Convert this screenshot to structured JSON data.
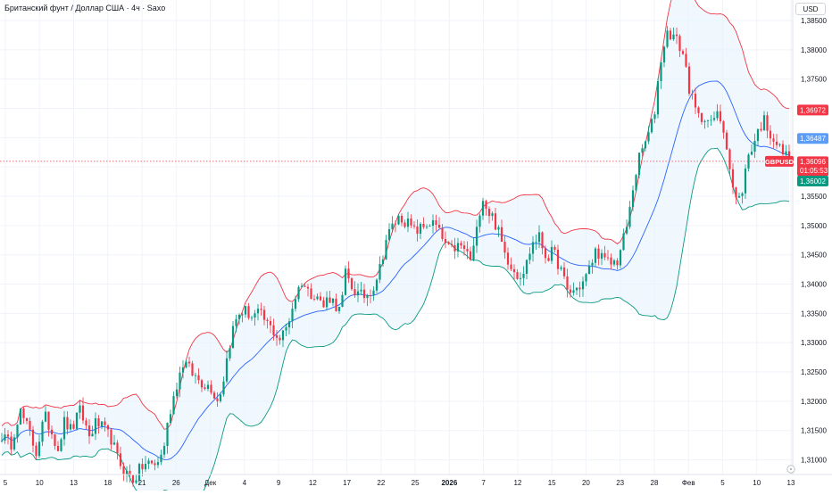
{
  "header": {
    "title": "Британский фунт / Доллар США · 4ч · Saxo",
    "currency_button": "USD"
  },
  "colors": {
    "up": "#089981",
    "down": "#f23645",
    "middle_band": "#2962ff",
    "upper_band": "#f23645",
    "lower_band": "#089981",
    "band_fill": "#e3f2fd"
  },
  "chart_data": {
    "type": "candlestick",
    "symbol": "GBPUSD",
    "indicator": "Bollinger Bands",
    "y_range": [
      1.3075,
      1.3885
    ],
    "y_ticks": [
      {
        "value": 1.385,
        "label": "1,38500"
      },
      {
        "value": 1.38,
        "label": "1,38000"
      },
      {
        "value": 1.375,
        "label": "1,37500"
      },
      {
        "value": 1.37,
        "label": "1,37000"
      },
      {
        "value": 1.365,
        "label": "1,36500"
      },
      {
        "value": 1.36,
        "label": "1,36000"
      },
      {
        "value": 1.355,
        "label": "1,35500"
      },
      {
        "value": 1.35,
        "label": "1,35000"
      },
      {
        "value": 1.345,
        "label": "1,34500"
      },
      {
        "value": 1.34,
        "label": "1,34000"
      },
      {
        "value": 1.335,
        "label": "1,33500"
      },
      {
        "value": 1.33,
        "label": "1,33000"
      },
      {
        "value": 1.325,
        "label": "1,32500"
      },
      {
        "value": 1.32,
        "label": "1,32000"
      },
      {
        "value": 1.315,
        "label": "1,31500"
      },
      {
        "value": 1.31,
        "label": "1,31000"
      }
    ],
    "x_ticks": [
      "5",
      "10",
      "13",
      "18",
      "21",
      "26",
      "Дек",
      "4",
      "9",
      "12",
      "17",
      "22",
      "25",
      "2026",
      "7",
      "12",
      "15",
      "20",
      "23",
      "28",
      "Фев",
      "5",
      "10",
      "13"
    ],
    "price_labels": {
      "upper_band": {
        "value": 1.36972,
        "label": "1,36972"
      },
      "middle_band": {
        "value": 1.36487,
        "label": "1,36487"
      },
      "last_price": {
        "value": 1.36096,
        "label": "1,36096",
        "symbol": "GBPUSD",
        "countdown": "01:05:53"
      },
      "lower_band": {
        "value": 1.36002,
        "label": "1,36002"
      }
    },
    "close_path": [
      [
        0,
        1.3145
      ],
      [
        12,
        1.3125
      ],
      [
        22,
        1.3185
      ],
      [
        35,
        1.314
      ],
      [
        40,
        1.311
      ],
      [
        50,
        1.3175
      ],
      [
        60,
        1.314
      ],
      [
        65,
        1.312
      ],
      [
        72,
        1.3165
      ],
      [
        80,
        1.315
      ],
      [
        90,
        1.3185
      ],
      [
        100,
        1.314
      ],
      [
        108,
        1.3165
      ],
      [
        117,
        1.315
      ],
      [
        125,
        1.3135
      ],
      [
        132,
        1.31
      ],
      [
        140,
        1.308
      ],
      [
        150,
        1.3065
      ],
      [
        157,
        1.3085
      ],
      [
        165,
        1.3095
      ],
      [
        173,
        1.309
      ],
      [
        182,
        1.311
      ],
      [
        190,
        1.318
      ],
      [
        198,
        1.323
      ],
      [
        206,
        1.327
      ],
      [
        214,
        1.325
      ],
      [
        220,
        1.324
      ],
      [
        228,
        1.323
      ],
      [
        236,
        1.3225
      ],
      [
        244,
        1.32
      ],
      [
        250,
        1.3235
      ],
      [
        256,
        1.329
      ],
      [
        262,
        1.333
      ],
      [
        268,
        1.335
      ],
      [
        274,
        1.3355
      ],
      [
        282,
        1.3345
      ],
      [
        290,
        1.335
      ],
      [
        298,
        1.3335
      ],
      [
        306,
        1.332
      ],
      [
        314,
        1.3305
      ],
      [
        322,
        1.333
      ],
      [
        330,
        1.3375
      ],
      [
        338,
        1.3405
      ],
      [
        346,
        1.3385
      ],
      [
        354,
        1.3385
      ],
      [
        362,
        1.336
      ],
      [
        368,
        1.338
      ],
      [
        376,
        1.3365
      ],
      [
        382,
        1.335
      ],
      [
        386,
        1.342
      ],
      [
        394,
        1.3395
      ],
      [
        402,
        1.338
      ],
      [
        410,
        1.338
      ],
      [
        418,
        1.3395
      ],
      [
        426,
        1.343
      ],
      [
        432,
        1.3475
      ],
      [
        440,
        1.35
      ],
      [
        448,
        1.3515
      ],
      [
        456,
        1.3505
      ],
      [
        464,
        1.349
      ],
      [
        472,
        1.3495
      ],
      [
        480,
        1.3505
      ],
      [
        488,
        1.35
      ],
      [
        496,
        1.3475
      ],
      [
        504,
        1.3455
      ],
      [
        512,
        1.3465
      ],
      [
        520,
        1.346
      ],
      [
        528,
        1.344
      ],
      [
        534,
        1.349
      ],
      [
        540,
        1.3555
      ],
      [
        546,
        1.3525
      ],
      [
        552,
        1.3515
      ],
      [
        558,
        1.349
      ],
      [
        566,
        1.345
      ],
      [
        572,
        1.3435
      ],
      [
        580,
        1.3415
      ],
      [
        588,
        1.3425
      ],
      [
        596,
        1.347
      ],
      [
        604,
        1.348
      ],
      [
        612,
        1.3445
      ],
      [
        620,
        1.3455
      ],
      [
        628,
        1.3425
      ],
      [
        636,
        1.3385
      ],
      [
        644,
        1.339
      ],
      [
        652,
        1.34
      ],
      [
        660,
        1.3425
      ],
      [
        668,
        1.346
      ],
      [
        676,
        1.344
      ],
      [
        684,
        1.3435
      ],
      [
        692,
        1.344
      ],
      [
        698,
        1.3475
      ],
      [
        704,
        1.351
      ],
      [
        710,
        1.3575
      ],
      [
        716,
        1.3615
      ],
      [
        722,
        1.364
      ],
      [
        728,
        1.366
      ],
      [
        734,
        1.37
      ],
      [
        738,
        1.376
      ],
      [
        742,
        1.38
      ],
      [
        748,
        1.383
      ],
      [
        754,
        1.3825
      ],
      [
        760,
        1.381
      ],
      [
        766,
        1.379
      ],
      [
        772,
        1.3735
      ],
      [
        778,
        1.37
      ],
      [
        784,
        1.368
      ],
      [
        790,
        1.369
      ],
      [
        796,
        1.367
      ],
      [
        802,
        1.369
      ],
      [
        808,
        1.368
      ],
      [
        814,
        1.364
      ],
      [
        820,
        1.357
      ],
      [
        826,
        1.3535
      ],
      [
        832,
        1.3565
      ],
      [
        838,
        1.362
      ],
      [
        844,
        1.364
      ],
      [
        850,
        1.3665
      ],
      [
        856,
        1.368
      ],
      [
        862,
        1.366
      ],
      [
        868,
        1.3645
      ],
      [
        874,
        1.363
      ],
      [
        880,
        1.362
      ],
      [
        885,
        1.361
      ]
    ]
  }
}
